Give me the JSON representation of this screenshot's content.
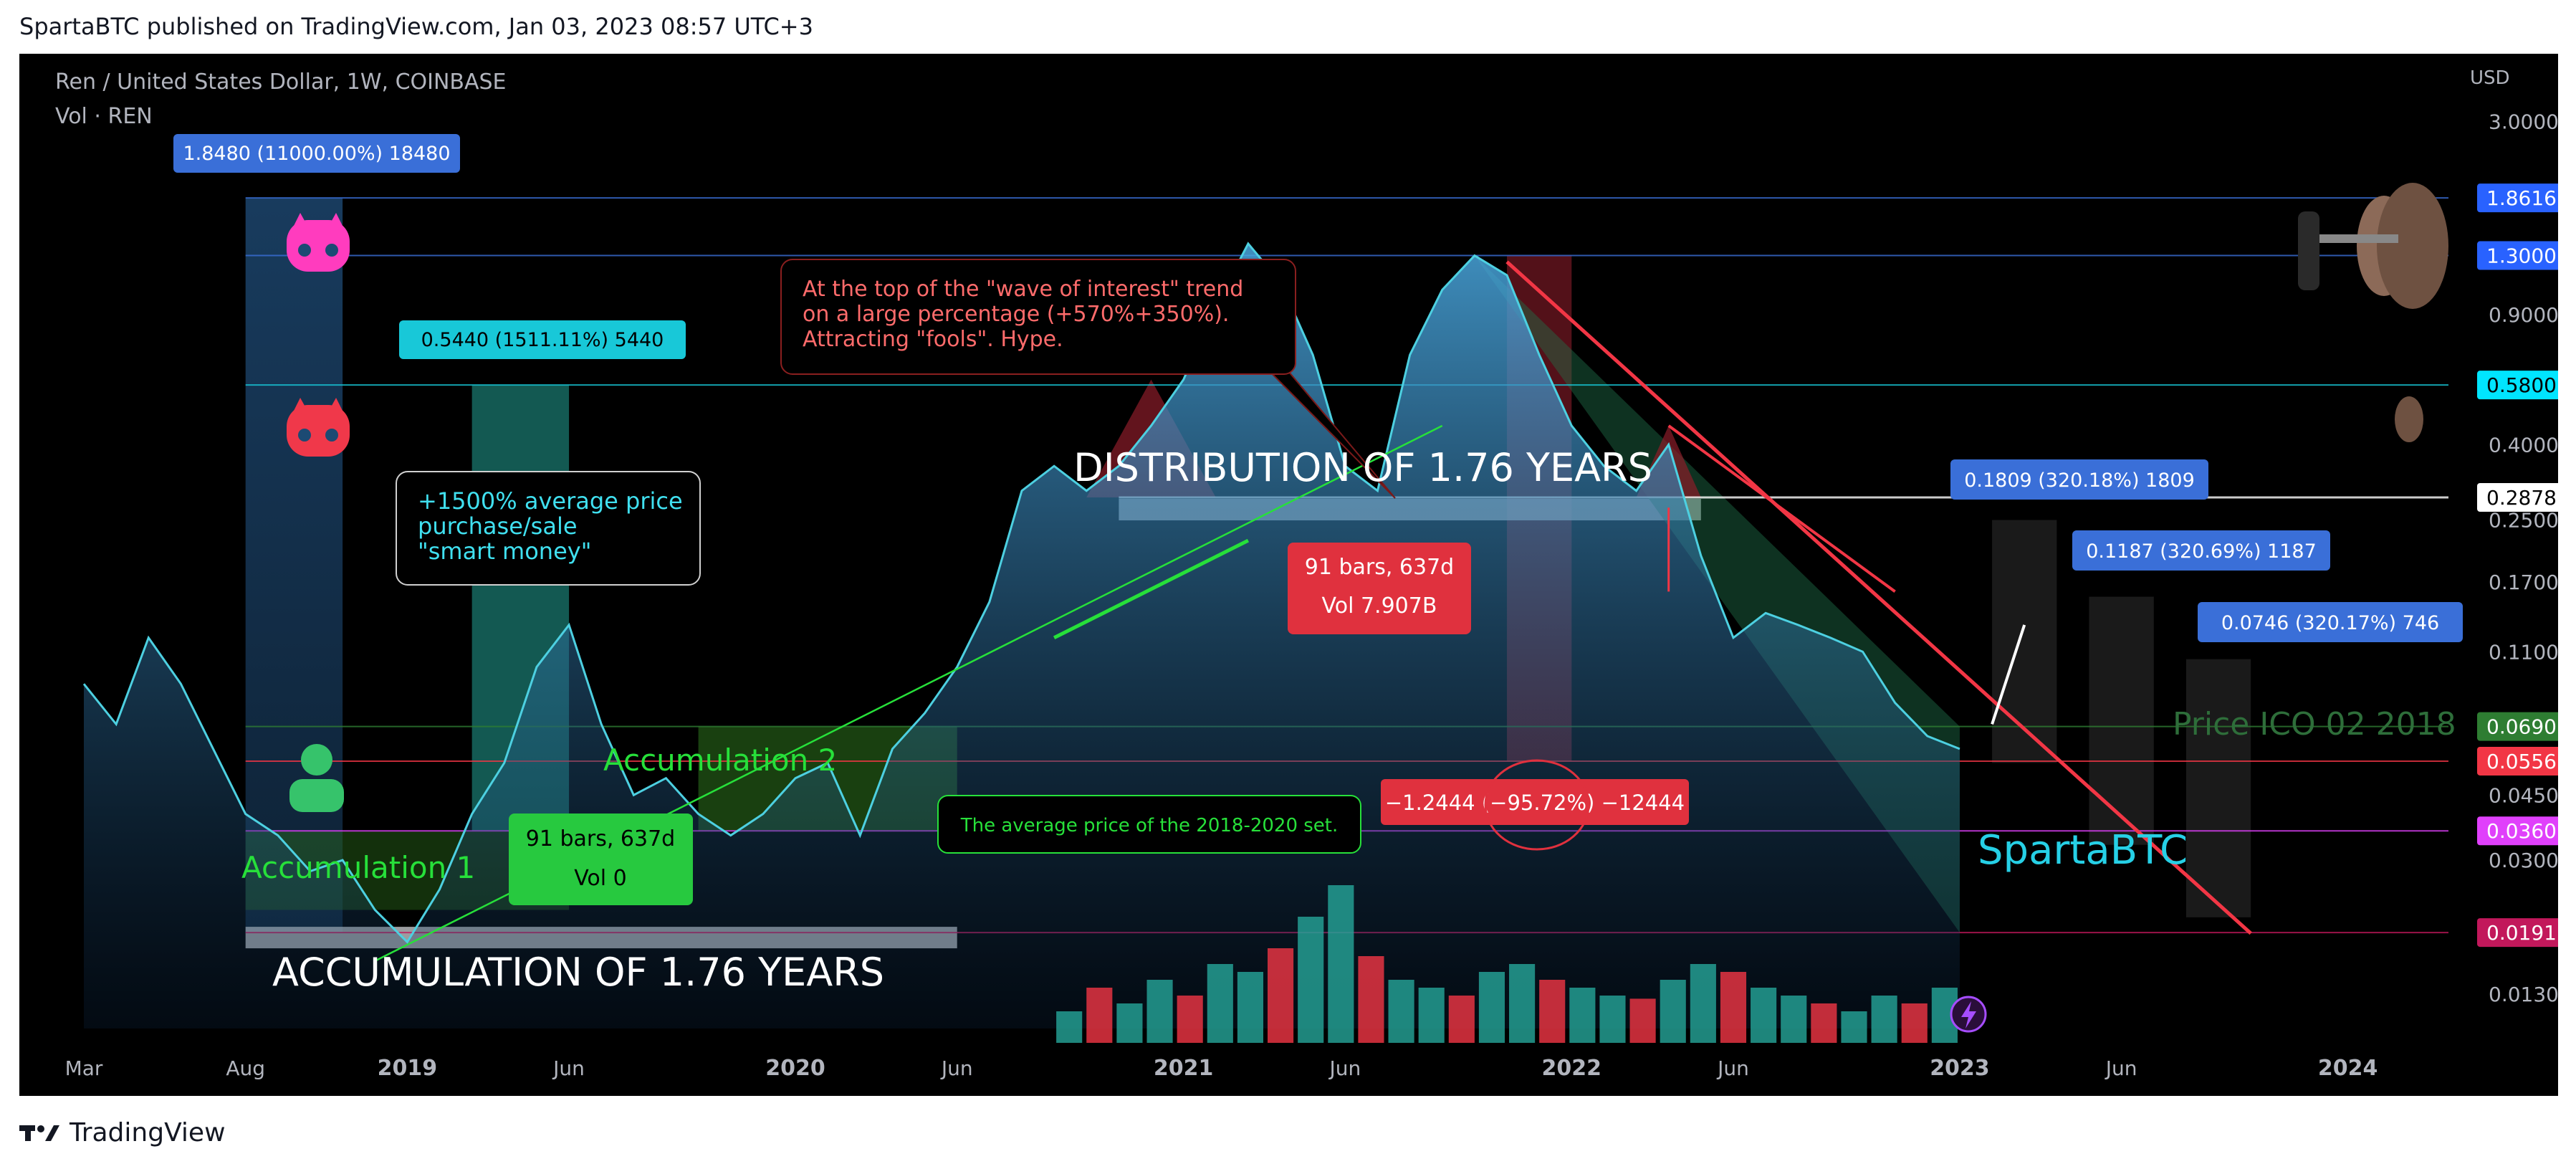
{
  "header": {
    "published": "SpartaBTC published on TradingView.com, Jan 03, 2023 08:57 UTC+3",
    "symbol": "Ren / United States Dollar, 1W, COINBASE",
    "volume_label": "Vol · REN"
  },
  "footer": {
    "brand": "TradingView"
  },
  "colors": {
    "background": "#000000",
    "price_line": "#4dd0e1",
    "green": "#00e676",
    "red": "#f23645",
    "blue_label": "#2962ff"
  },
  "chart_data": {
    "type": "area",
    "title": "Ren / United States Dollar, 1W, COINBASE",
    "scale": "log",
    "currency": "USD",
    "ylim": [
      0.0105,
      4.0
    ],
    "y_ticks": [
      {
        "value": 3.0,
        "label": "3.0000"
      },
      {
        "value": 1.3,
        "label": "1.3000"
      },
      {
        "value": 0.9,
        "label": "0.9000"
      },
      {
        "value": 0.4,
        "label": "0.4000"
      },
      {
        "value": 0.25,
        "label": "0.2500"
      },
      {
        "value": 0.17,
        "label": "0.1700"
      },
      {
        "value": 0.11,
        "label": "0.1100"
      },
      {
        "value": 0.045,
        "label": "0.0450"
      },
      {
        "value": 0.03,
        "label": "0.0300"
      },
      {
        "value": 0.013,
        "label": "0.0130"
      }
    ],
    "x_ticks": [
      {
        "date": "2018-03",
        "label": "Mar"
      },
      {
        "date": "2018-08",
        "label": "Aug"
      },
      {
        "date": "2019-01",
        "label": "2019"
      },
      {
        "date": "2019-06",
        "label": "Jun"
      },
      {
        "date": "2020-01",
        "label": "2020"
      },
      {
        "date": "2020-06",
        "label": "Jun"
      },
      {
        "date": "2021-01",
        "label": "2021"
      },
      {
        "date": "2021-06",
        "label": "Jun"
      },
      {
        "date": "2022-01",
        "label": "2022"
      },
      {
        "date": "2022-06",
        "label": "Jun"
      },
      {
        "date": "2023-01",
        "label": "2023"
      },
      {
        "date": "2023-06",
        "label": "Jun"
      },
      {
        "date": "2024-01",
        "label": "2024"
      }
    ],
    "series": [
      {
        "x": [
          "2018-03",
          "2018-04",
          "2018-05",
          "2018-06",
          "2018-07",
          "2018-08",
          "2018-09",
          "2018-10",
          "2018-11",
          "2018-12",
          "2019-01",
          "2019-02",
          "2019-03",
          "2019-04",
          "2019-05",
          "2019-06",
          "2019-07",
          "2019-08",
          "2019-09",
          "2019-10",
          "2019-11",
          "2019-12",
          "2020-01",
          "2020-02",
          "2020-03",
          "2020-04",
          "2020-05",
          "2020-06",
          "2020-07",
          "2020-08",
          "2020-09",
          "2020-10",
          "2020-11",
          "2020-12",
          "2021-01",
          "2021-02",
          "2021-03",
          "2021-04",
          "2021-05",
          "2021-06",
          "2021-07",
          "2021-08",
          "2021-09",
          "2021-10",
          "2021-11",
          "2021-12",
          "2022-01",
          "2022-02",
          "2022-03",
          "2022-04",
          "2022-05",
          "2022-06",
          "2022-07",
          "2022-08",
          "2022-09",
          "2022-10",
          "2022-11",
          "2022-12",
          "2023-01"
        ],
        "values": [
          0.09,
          0.07,
          0.12,
          0.09,
          0.06,
          0.04,
          0.035,
          0.028,
          0.03,
          0.022,
          0.018,
          0.025,
          0.04,
          0.055,
          0.1,
          0.13,
          0.07,
          0.045,
          0.05,
          0.04,
          0.035,
          0.04,
          0.05,
          0.055,
          0.035,
          0.06,
          0.075,
          0.1,
          0.15,
          0.3,
          0.35,
          0.3,
          0.35,
          0.45,
          0.6,
          0.95,
          1.4,
          1.1,
          0.7,
          0.35,
          0.3,
          0.7,
          1.05,
          1.3,
          1.15,
          0.7,
          0.45,
          0.35,
          0.3,
          0.4,
          0.2,
          0.12,
          0.14,
          0.13,
          0.12,
          0.11,
          0.08,
          0.065,
          0.06
        ]
      }
    ],
    "volume": {
      "label": "Vol · REN",
      "x_range": [
        "2020-09",
        "2023-01"
      ],
      "values": [
        0.2,
        0.35,
        0.25,
        0.4,
        0.3,
        0.5,
        0.45,
        0.6,
        0.8,
        1.0,
        0.55,
        0.4,
        0.35,
        0.3,
        0.45,
        0.5,
        0.4,
        0.35,
        0.3,
        0.28,
        0.4,
        0.5,
        0.45,
        0.35,
        0.3,
        0.25,
        0.2,
        0.3,
        0.25,
        0.35
      ]
    }
  },
  "price_axis": {
    "unit_label": "USD",
    "tags": [
      {
        "value": 1.8616,
        "label": "1.8616",
        "color": "#2962ff",
        "text_color": "#ffffff"
      },
      {
        "value": 1.3,
        "label": "1.3000",
        "color": "#2962ff",
        "text_color": "#ffffff"
      },
      {
        "value": 0.58,
        "label": "0.5800",
        "color": "#00e5ff",
        "text_color": "#000000"
      },
      {
        "value": 0.2878,
        "label": "0.2878",
        "color": "#ffffff",
        "text_color": "#000000"
      },
      {
        "value": 0.069,
        "label": "0.0690",
        "color": "#2e7d32",
        "text_color": "#ffffff"
      },
      {
        "value": 0.0556,
        "label": "0.0556",
        "color": "#f23645",
        "text_color": "#ffffff"
      },
      {
        "value": 0.036,
        "label": "0.0360",
        "color": "#e040fb",
        "text_color": "#ffffff"
      },
      {
        "value": 0.0191,
        "label": "0.0191",
        "color": "#c2185b",
        "text_color": "#ffffff"
      }
    ]
  },
  "annotations": {
    "range_top_label": "1.8480 (11000.00%) 18480",
    "range_mid_label": "0.5440 (1511.11%) 5440",
    "smart_money_note": [
      "+1500% average price",
      "purchase/sale",
      "\"smart money\""
    ],
    "wave_note": [
      "At the top of the \"wave of interest\" trend",
      "on a large percentage (+570%+350%).",
      "Attracting \"fools\". Hype."
    ],
    "distribution_title": "DISTRIBUTION OF 1.76 YEARS",
    "accumulation_title": "ACCUMULATION OF 1.76 YEARS",
    "accumulation_1": "Accumulation 1",
    "accumulation_2": "Accumulation 2",
    "bars_info_green": [
      "91 bars, 637d",
      "Vol 0"
    ],
    "bars_info_red": [
      "91 bars, 637d",
      "Vol 7.907B"
    ],
    "avg_price_note": "The average price of the 2018-2020 set.",
    "drop_label": "−1.2444 (−95.72%) −12444",
    "target_1": "0.1809 (320.18%) 1809",
    "target_2": "0.1187 (320.69%) 1187",
    "target_3": "0.0746 (320.17%) 746",
    "ico_label": "Price ICO 02 2018",
    "author": "SpartaBTC"
  }
}
